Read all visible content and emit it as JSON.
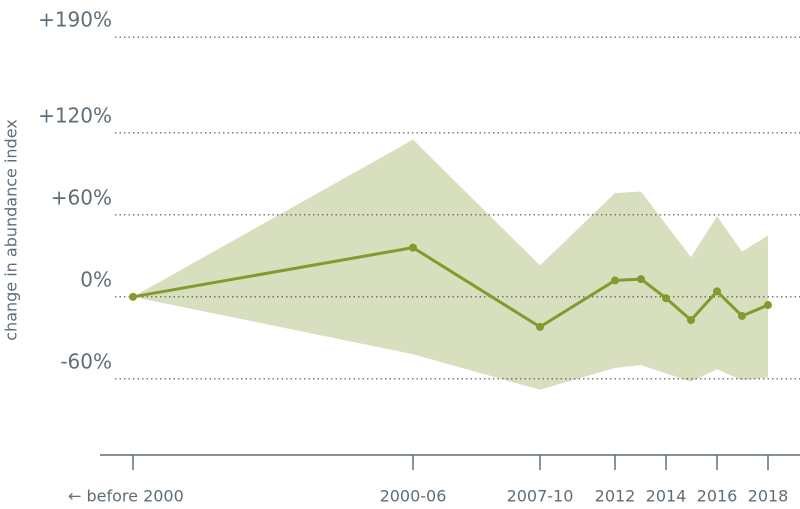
{
  "chart_data": {
    "type": "line",
    "y_label": "change in abundance index",
    "categories": [
      "← before 2000",
      "2000-06",
      "2007-10",
      "2012",
      null,
      "2014",
      null,
      "2016",
      null,
      "2018"
    ],
    "series": [
      {
        "color": "#849a2c",
        "values": [
          0,
          36,
          -22,
          12,
          13,
          -1,
          -17,
          4,
          -14,
          -6
        ]
      }
    ],
    "band": {
      "color": "#d8dfbe",
      "upper": [
        0,
        115,
        23,
        76,
        77,
        53,
        29,
        59,
        33,
        45
      ],
      "lower": [
        0,
        -42,
        -68,
        -52,
        -50,
        -56,
        -62,
        -53,
        -61,
        -59
      ]
    },
    "ylim": [
      -115,
      215
    ],
    "yticks": [
      {
        "value": -60,
        "label": "-60%"
      },
      {
        "value": 0,
        "label": "0%"
      },
      {
        "value": 60,
        "label": "+60%"
      },
      {
        "value": 120,
        "label": "+120%"
      },
      {
        "value": 190,
        "label": "+190%"
      }
    ],
    "grid": true
  }
}
